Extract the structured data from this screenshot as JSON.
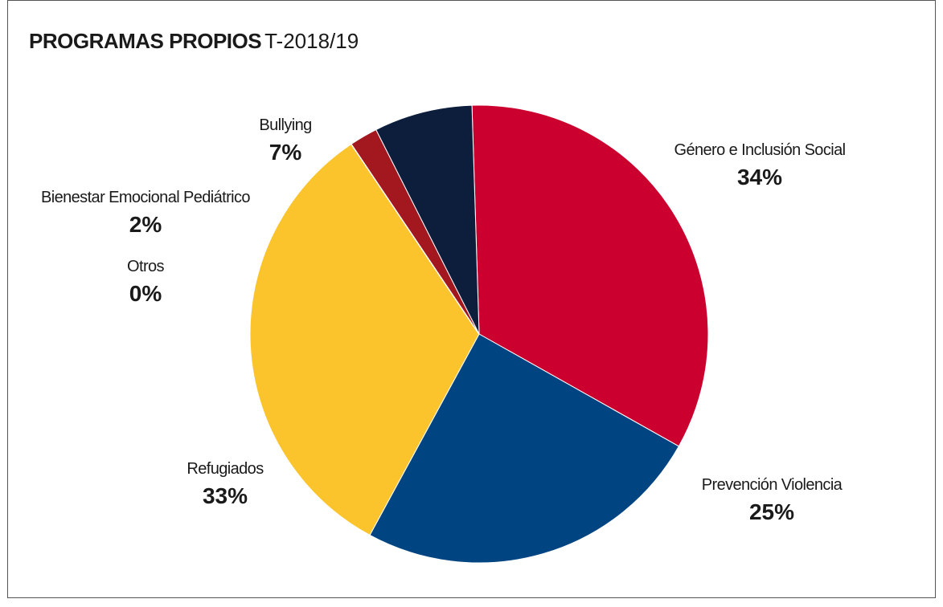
{
  "title": "PROGRAMAS PROPIOS",
  "subtitle": "T-2018/19",
  "chart_data": {
    "type": "pie",
    "title": "PROGRAMAS PROPIOS",
    "subtitle": "T-2018/19",
    "unit": "%",
    "slices": [
      {
        "label": "Género e Inclusión Social",
        "value": 34,
        "display": "34%",
        "color": "#cc002f"
      },
      {
        "label": "Prevención Violencia",
        "value": 25,
        "display": "25%",
        "color": "#004481"
      },
      {
        "label": "Refugiados",
        "value": 33,
        "display": "33%",
        "color": "#fbc42d"
      },
      {
        "label": "Otros",
        "value": 0,
        "display": "0%",
        "color": "#ffffff"
      },
      {
        "label": "Bienestar Emocional Pediátrico",
        "value": 2,
        "display": "2%",
        "color": "#a3171e"
      },
      {
        "label": "Bullying",
        "value": 7,
        "display": "7%",
        "color": "#0d1e3c"
      }
    ]
  }
}
